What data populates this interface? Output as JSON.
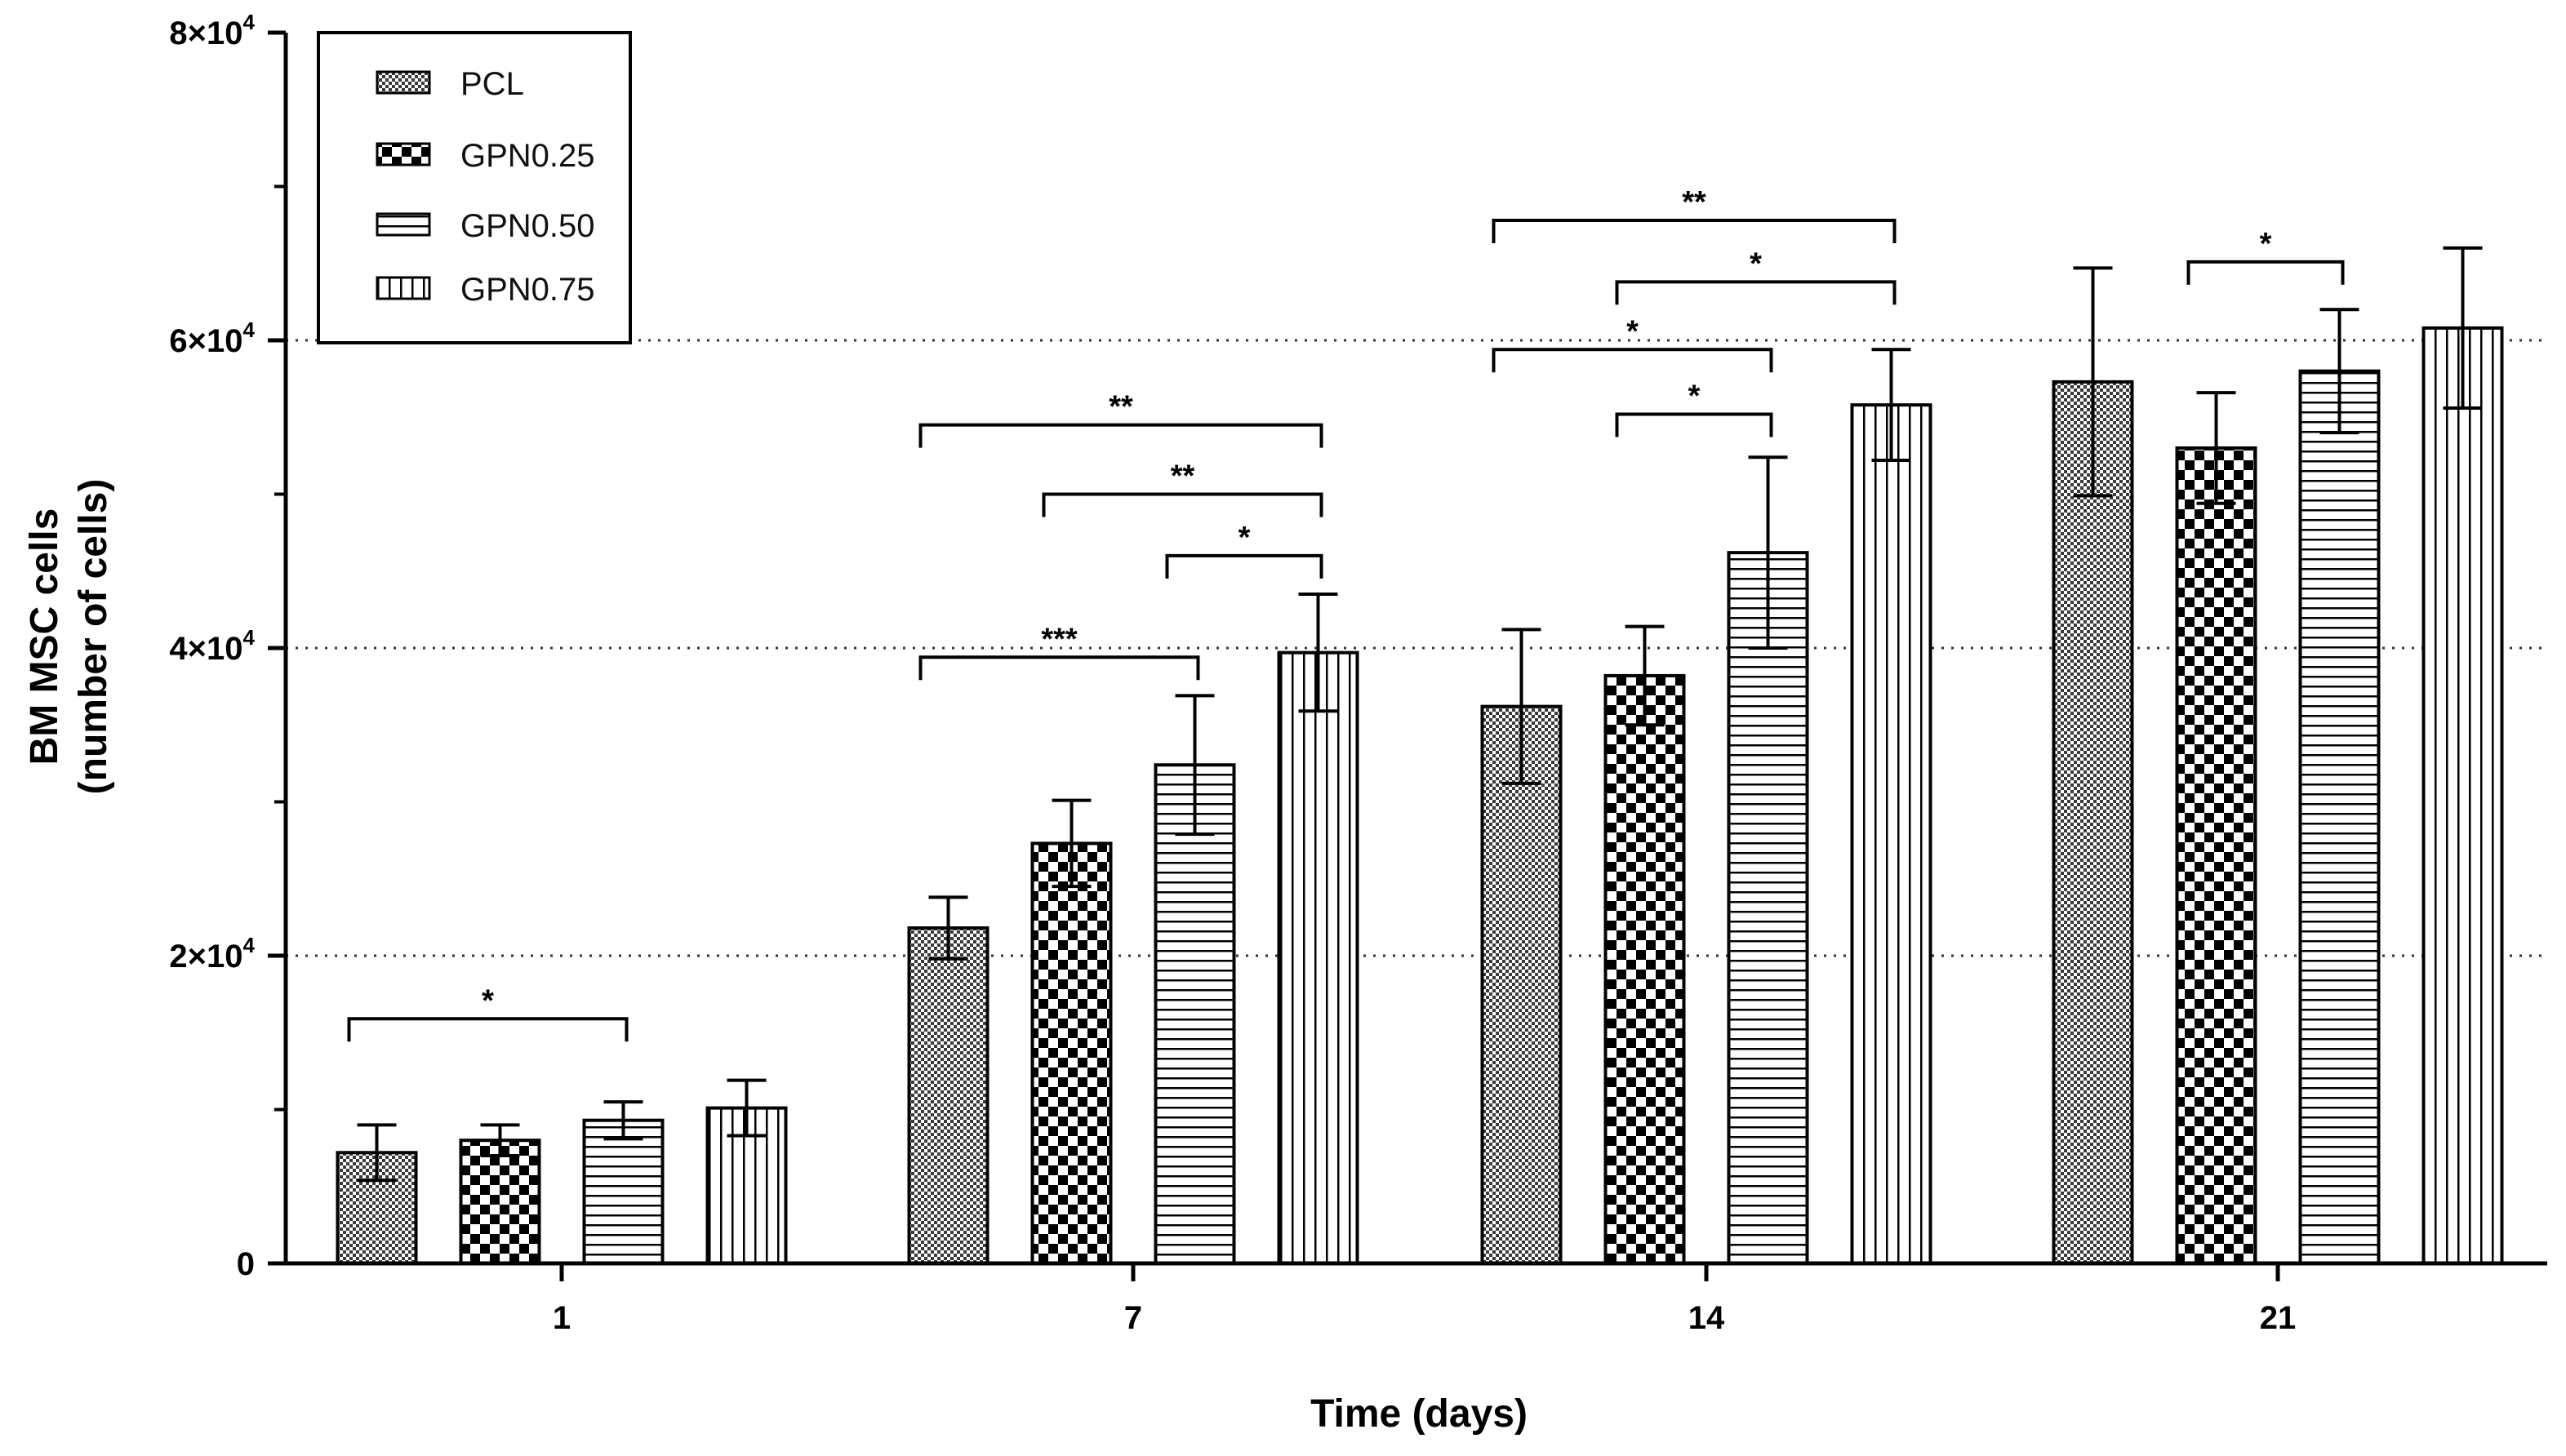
{
  "chart_data": {
    "type": "bar",
    "title": "",
    "xlabel": "Time (days)",
    "ylabel_line1": "BM MSC cells",
    "ylabel_line2": "(number of cells)",
    "ylim": [
      0,
      80000
    ],
    "yticks": [
      {
        "value": 0,
        "mantissa": "0",
        "exp": ""
      },
      {
        "value": 20000,
        "mantissa": "2×10",
        "exp": "4"
      },
      {
        "value": 40000,
        "mantissa": "4×10",
        "exp": "4"
      },
      {
        "value": 60000,
        "mantissa": "6×10",
        "exp": "4"
      },
      {
        "value": 80000,
        "mantissa": "8×10",
        "exp": "4"
      }
    ],
    "gridlines": [
      20000,
      40000,
      60000
    ],
    "categories": [
      "1",
      "7",
      "14",
      "21"
    ],
    "series": [
      {
        "name": "PCL",
        "pattern": "fine-check",
        "values": [
          7200,
          21800,
          36200,
          57300
        ],
        "errors": [
          1800,
          2000,
          5000,
          7400
        ]
      },
      {
        "name": "GPN0.25",
        "pattern": "checker",
        "values": [
          8000,
          27300,
          38200,
          53000
        ],
        "errors": [
          1000,
          2800,
          3200,
          3600
        ]
      },
      {
        "name": "GPN0.50",
        "pattern": "horizontal",
        "values": [
          9300,
          32400,
          46200,
          58000
        ],
        "errors": [
          1200,
          4500,
          6200,
          4000
        ]
      },
      {
        "name": "GPN0.75",
        "pattern": "vertical",
        "values": [
          10100,
          39700,
          55800,
          60800
        ],
        "errors": [
          1800,
          3800,
          3600,
          5200
        ]
      }
    ],
    "significance": [
      {
        "category": 0,
        "from": 0,
        "to": 2,
        "y": 15900,
        "label": "*"
      },
      {
        "category": 1,
        "from": 0,
        "to": 3,
        "y": 54500,
        "label": "**"
      },
      {
        "category": 1,
        "from": 1,
        "to": 3,
        "y": 50000,
        "label": "**"
      },
      {
        "category": 1,
        "from": 2,
        "to": 3,
        "y": 46000,
        "label": "*"
      },
      {
        "category": 1,
        "from": 0,
        "to": 2,
        "y": 39400,
        "label": "***"
      },
      {
        "category": 2,
        "from": 0,
        "to": 3,
        "y": 67800,
        "label": "**"
      },
      {
        "category": 2,
        "from": 1,
        "to": 3,
        "y": 63800,
        "label": "*"
      },
      {
        "category": 2,
        "from": 0,
        "to": 2,
        "y": 59400,
        "label": "*"
      },
      {
        "category": 2,
        "from": 1,
        "to": 2,
        "y": 55200,
        "label": "*"
      },
      {
        "category": 3,
        "from": 1,
        "to": 2,
        "y": 65100,
        "label": "*"
      }
    ],
    "legend": {
      "position": "top-left"
    }
  }
}
